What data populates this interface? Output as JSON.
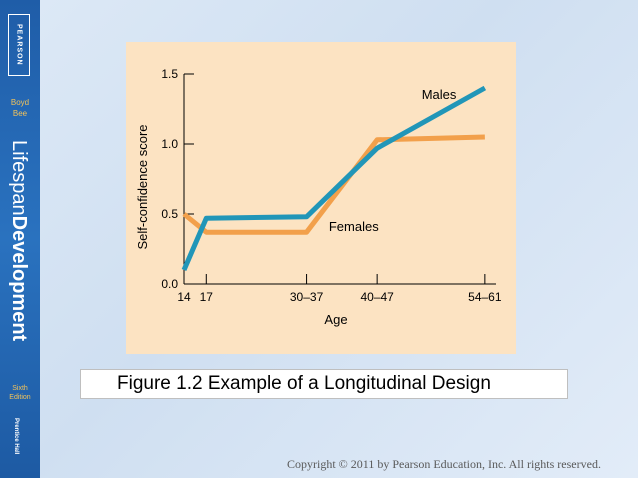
{
  "sidebar": {
    "publisher_logo": "PEARSON",
    "authors": [
      "Boyd",
      "Bee"
    ],
    "title_light": "Lifespan",
    "title_bold": "Development",
    "edition": [
      "Sixth",
      "Edition"
    ],
    "imprint": "Prentice Hall"
  },
  "caption": "Figure 1.2 Example of a Longitudinal Design",
  "copyright": "Copyright © 2011 by Pearson Education, Inc. All rights reserved.",
  "colors": {
    "males": "#2196b8",
    "females": "#f2a04b",
    "panel": "#fce3c2",
    "sidebar": "#2366b0"
  },
  "chart_data": {
    "type": "line",
    "title": "",
    "xlabel": "Age",
    "ylabel": "Self-confidence score",
    "categories": [
      "14",
      "17",
      "30–37",
      "40–47",
      "54–61"
    ],
    "ylim": [
      0.0,
      1.5
    ],
    "yticks": [
      "0.0",
      "0.5",
      "1.0",
      "1.5"
    ],
    "grid": false,
    "series": [
      {
        "name": "Males",
        "x": [
          14,
          17,
          30.5,
          40,
          54.5
        ],
        "values": [
          0.1,
          0.47,
          0.48,
          0.97,
          1.4
        ]
      },
      {
        "name": "Females",
        "x": [
          14,
          17,
          30.5,
          40,
          54.5
        ],
        "values": [
          0.5,
          0.37,
          0.37,
          1.03,
          1.05
        ]
      }
    ]
  }
}
